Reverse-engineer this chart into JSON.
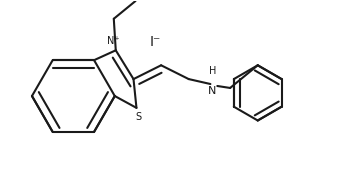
{
  "background_color": "#ffffff",
  "line_color": "#1a1a1a",
  "line_width": 1.5,
  "figsize": [
    3.38,
    1.96
  ],
  "dpi": 100,
  "iodide_label": "I⁻",
  "nplus_label": "N⁺",
  "s_label": "S",
  "nh_label": "H\nN"
}
